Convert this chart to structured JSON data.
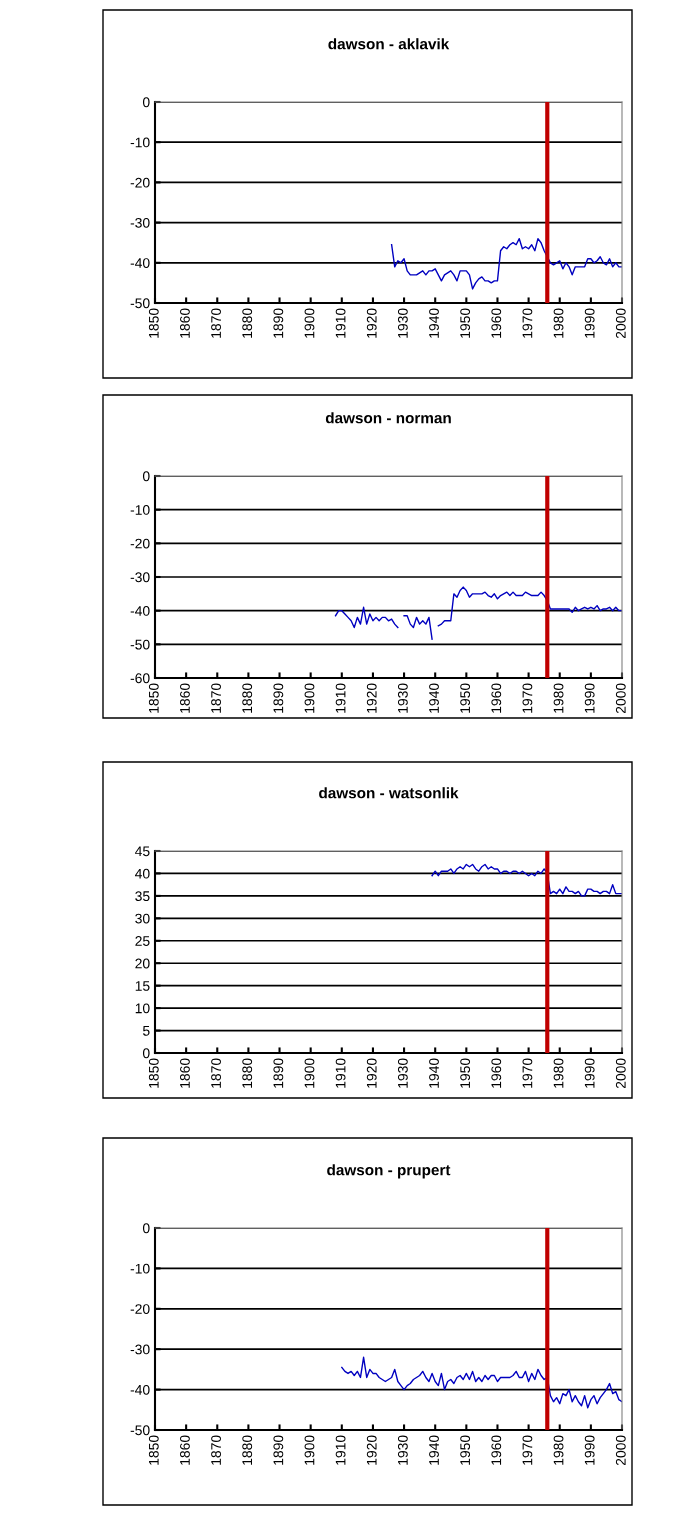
{
  "chart_data": [
    {
      "type": "line",
      "title": "dawson - aklavik",
      "xlim": [
        1850,
        2000
      ],
      "xticks": [
        1850,
        1860,
        1870,
        1880,
        1890,
        1900,
        1910,
        1920,
        1930,
        1940,
        1950,
        1960,
        1970,
        1980,
        1990,
        2000
      ],
      "ylim": [
        -50,
        0
      ],
      "yticks": [
        -50,
        -40,
        -30,
        -20,
        -10,
        0
      ],
      "grid": "y",
      "marker": "none",
      "line_style": "solid",
      "ref_lines": [
        {
          "axis": "x",
          "value": 1976,
          "color": "#c00000"
        }
      ],
      "series": [
        {
          "color": "#0000c0",
          "x": [
            1926,
            1927,
            1928,
            1929,
            1930,
            1931,
            1932,
            1933,
            1934,
            1935,
            1936,
            1937,
            1938,
            1939,
            1940,
            1941,
            1942,
            1943,
            1944,
            1945,
            1946,
            1947,
            1948,
            1949,
            1950,
            1951,
            1952,
            1953,
            1954,
            1955,
            1956,
            1957,
            1958,
            1959,
            1960,
            1961,
            1962,
            1963,
            1964,
            1965,
            1966,
            1967,
            1968,
            1969,
            1970,
            1971,
            1972,
            1973,
            1974,
            1975,
            1976,
            1977,
            1978,
            1979,
            1980,
            1981,
            1982,
            1983,
            1984,
            1985,
            1986,
            1987,
            1988,
            1989,
            1990,
            1991,
            1992,
            1993,
            1994,
            1995,
            1996,
            1997,
            1998,
            1999,
            2000
          ],
          "values": [
            -35.5,
            -41,
            -39.5,
            -40,
            -39,
            -42,
            -43,
            -43,
            -43,
            -42.5,
            -42,
            -43,
            -42,
            -42,
            -41.5,
            -43,
            -44.5,
            -43,
            -42.5,
            -42,
            -43,
            -44.5,
            -42,
            -42,
            -42,
            -43,
            -46.5,
            -45,
            -44,
            -43.5,
            -44.5,
            -44.5,
            -45,
            -44.5,
            -44.5,
            -37,
            -36,
            -36.5,
            -35.5,
            -35,
            -35.5,
            -34,
            -36.5,
            -36,
            -36.5,
            -35.5,
            -37,
            -34,
            -35,
            -37,
            -38.5,
            -40,
            -40.5,
            -40,
            -39.5,
            -41.5,
            -40,
            -41,
            -43,
            -41,
            -41,
            -41,
            -41,
            -39,
            -39,
            -40,
            -39.5,
            -38.5,
            -40,
            -40.5,
            -39,
            -41,
            -40,
            -41,
            -41
          ]
        }
      ]
    },
    {
      "type": "line",
      "title": "dawson - norman",
      "xlim": [
        1850,
        2000
      ],
      "xticks": [
        1850,
        1860,
        1870,
        1880,
        1890,
        1900,
        1910,
        1920,
        1930,
        1940,
        1950,
        1960,
        1970,
        1980,
        1990,
        2000
      ],
      "ylim": [
        -60,
        0
      ],
      "yticks": [
        -60,
        -50,
        -40,
        -30,
        -20,
        -10,
        0
      ],
      "grid": "y",
      "marker": "none",
      "line_style": "solid",
      "ref_lines": [
        {
          "axis": "x",
          "value": 1976,
          "color": "#c00000"
        }
      ],
      "series": [
        {
          "color": "#0000c0",
          "x": [
            1908,
            1909,
            1910,
            1911,
            1912,
            1913,
            1914,
            1915,
            1916,
            1917,
            1918,
            1919,
            1920,
            1921,
            1922,
            1923,
            1924,
            1925,
            1926,
            1927,
            1928,
            1929,
            1930,
            1931,
            1932,
            1933,
            1934,
            1935,
            1936,
            1937,
            1938,
            1939,
            1940,
            1941,
            1942,
            1943,
            1944,
            1945,
            1946,
            1947,
            1948,
            1949,
            1950,
            1951,
            1952,
            1953,
            1954,
            1955,
            1956,
            1957,
            1958,
            1959,
            1960,
            1961,
            1962,
            1963,
            1964,
            1965,
            1966,
            1967,
            1968,
            1969,
            1970,
            1971,
            1972,
            1973,
            1974,
            1975,
            1976,
            1977,
            1978,
            1979,
            1980,
            1981,
            1982,
            1983,
            1984,
            1985,
            1986,
            1987,
            1988,
            1989,
            1990,
            1991,
            1992,
            1993,
            1994,
            1995,
            1996,
            1997,
            1998,
            1999,
            2000
          ],
          "values": [
            -41.5,
            -40,
            -40,
            -41,
            -42,
            -43,
            -45,
            -42,
            -44,
            -39,
            -44,
            -41,
            -43,
            -42,
            -43,
            -42,
            -42,
            -43,
            -42.5,
            -44,
            -45,
            null,
            -41.5,
            -41.5,
            -44,
            -45,
            -42,
            -44,
            -43,
            -44,
            -42,
            -48.5,
            null,
            -44.5,
            -44,
            -43,
            -43,
            -43,
            -35,
            -36,
            -34,
            -33,
            -34,
            -36,
            -35,
            -35,
            -35,
            -35,
            -34.5,
            -35.5,
            -36,
            -35,
            -36.5,
            -35.5,
            -35,
            -34.5,
            -35.5,
            -34.5,
            -35.5,
            -35.5,
            -35.5,
            -34.5,
            -35,
            -35.5,
            -35.5,
            -35.5,
            -34.5,
            -35.5,
            -37,
            -39.5,
            -39.5,
            -39.5,
            -39.5,
            -39.5,
            -39.5,
            -39.5,
            -40.5,
            -39,
            -40,
            -39.5,
            -39,
            -39.5,
            -39,
            -39.5,
            -38.5,
            -40,
            -39.5,
            -39.5,
            -39,
            -40,
            -39,
            -40,
            -40
          ]
        }
      ]
    },
    {
      "type": "line",
      "title": "dawson - watsonlik",
      "xlim": [
        1850,
        2000
      ],
      "xticks": [
        1850,
        1860,
        1870,
        1880,
        1890,
        1900,
        1910,
        1920,
        1930,
        1940,
        1950,
        1960,
        1970,
        1980,
        1990,
        2000
      ],
      "ylim": [
        0,
        45
      ],
      "yticks": [
        0,
        5,
        10,
        15,
        20,
        25,
        30,
        35,
        40,
        45
      ],
      "grid": "y",
      "marker": "none",
      "line_style": "solid",
      "ref_lines": [
        {
          "axis": "x",
          "value": 1976,
          "color": "#c00000"
        }
      ],
      "series": [
        {
          "color": "#0000c0",
          "x": [
            1939,
            1940,
            1941,
            1942,
            1943,
            1944,
            1945,
            1946,
            1947,
            1948,
            1949,
            1950,
            1951,
            1952,
            1953,
            1954,
            1955,
            1956,
            1957,
            1958,
            1959,
            1960,
            1961,
            1962,
            1963,
            1964,
            1965,
            1966,
            1967,
            1968,
            1969,
            1970,
            1971,
            1972,
            1973,
            1974,
            1975,
            1976,
            1977,
            1978,
            1979,
            1980,
            1981,
            1982,
            1983,
            1984,
            1985,
            1986,
            1987,
            1988,
            1989,
            1990,
            1991,
            1992,
            1993,
            1994,
            1995,
            1996,
            1997,
            1998,
            1999,
            2000
          ],
          "values": [
            39.5,
            40.5,
            39.5,
            40.5,
            40.5,
            40.5,
            41,
            40,
            41,
            41.5,
            41,
            42,
            41.5,
            42,
            41,
            40.5,
            41.5,
            42,
            41,
            41.5,
            41,
            41,
            40,
            40.5,
            40.5,
            40,
            40.5,
            40.5,
            40,
            40.5,
            40,
            39.5,
            40,
            39.5,
            40.5,
            40,
            41,
            40,
            35.5,
            36,
            35.5,
            36.5,
            35.5,
            37,
            36,
            36,
            35.5,
            36,
            35,
            35,
            36.5,
            36.5,
            36,
            36,
            35.5,
            36,
            36,
            35.5,
            37.5,
            35.5,
            35.5,
            35.5
          ]
        }
      ]
    },
    {
      "type": "line",
      "title": "dawson - prupert",
      "xlim": [
        1850,
        2000
      ],
      "xticks": [
        1850,
        1860,
        1870,
        1880,
        1890,
        1900,
        1910,
        1920,
        1930,
        1940,
        1950,
        1960,
        1970,
        1980,
        1990,
        2000
      ],
      "ylim": [
        -50,
        0
      ],
      "yticks": [
        -50,
        -40,
        -30,
        -20,
        -10,
        0
      ],
      "grid": "y",
      "marker": "none",
      "line_style": "solid",
      "ref_lines": [
        {
          "axis": "x",
          "value": 1976,
          "color": "#c00000"
        }
      ],
      "series": [
        {
          "color": "#0000c0",
          "x": [
            1910,
            1911,
            1912,
            1913,
            1914,
            1915,
            1916,
            1917,
            1918,
            1919,
            1920,
            1921,
            1922,
            1923,
            1924,
            1925,
            1926,
            1927,
            1928,
            1929,
            1930,
            1931,
            1932,
            1933,
            1934,
            1935,
            1936,
            1937,
            1938,
            1939,
            1940,
            1941,
            1942,
            1943,
            1944,
            1945,
            1946,
            1947,
            1948,
            1949,
            1950,
            1951,
            1952,
            1953,
            1954,
            1955,
            1956,
            1957,
            1958,
            1959,
            1960,
            1961,
            1962,
            1963,
            1964,
            1965,
            1966,
            1967,
            1968,
            1969,
            1970,
            1971,
            1972,
            1973,
            1974,
            1975,
            1976,
            1977,
            1978,
            1979,
            1980,
            1981,
            1982,
            1983,
            1984,
            1985,
            1986,
            1987,
            1988,
            1989,
            1990,
            1991,
            1992,
            1993,
            1994,
            1995,
            1996,
            1997,
            1998,
            1999,
            2000
          ],
          "values": [
            -34.5,
            -35.5,
            -36,
            -35.5,
            -36.5,
            -35.5,
            -37,
            -32,
            -37,
            -35,
            -36,
            -36,
            -37,
            -37.5,
            -38,
            -37.5,
            -37,
            -35,
            -38,
            -39,
            -40,
            -39,
            -38.5,
            -37.5,
            -37,
            -36.5,
            -35.5,
            -37,
            -38,
            -36,
            -38,
            -39,
            -36,
            -40,
            -38,
            -37.5,
            -38.5,
            -37,
            -36.5,
            -37.5,
            -36,
            -37.5,
            -35.5,
            -38,
            -37,
            -38,
            -36.5,
            -37.5,
            -36.5,
            -36.5,
            -38,
            -37,
            -37,
            -37,
            -37,
            -36.5,
            -35.5,
            -37,
            -37,
            -35.5,
            -38,
            -36,
            -37.5,
            -35,
            -36.5,
            -37.5,
            -37,
            -41.5,
            -43,
            -42,
            -43.5,
            -41,
            -41.5,
            -40,
            -43,
            -41.5,
            -43,
            -44,
            -41.5,
            -44.5,
            -42.5,
            -41.5,
            -43.5,
            -42,
            -41,
            -40,
            -38.5,
            -41,
            -40.5,
            -42.5,
            -43
          ]
        }
      ]
    }
  ]
}
